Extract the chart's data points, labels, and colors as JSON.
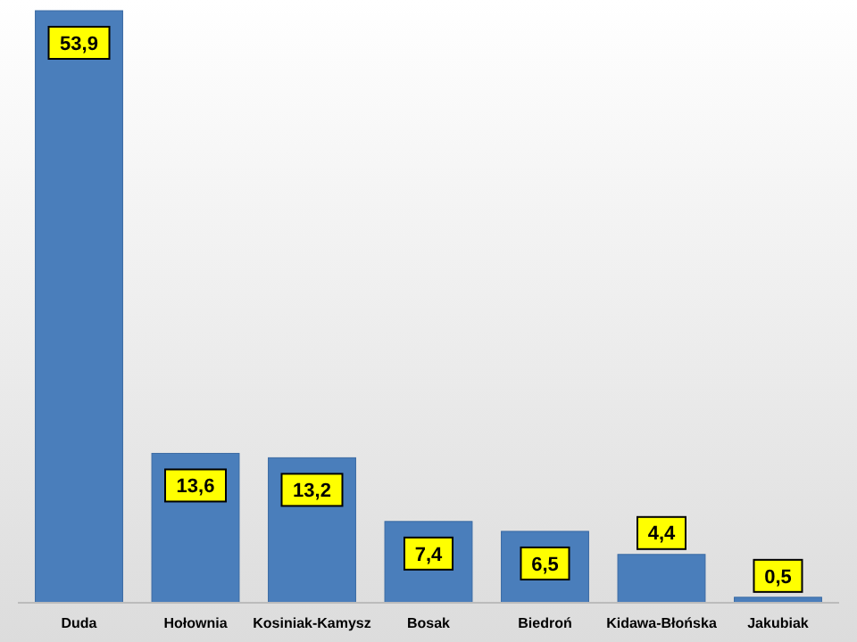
{
  "chart_data": {
    "type": "bar",
    "categories": [
      "Duda",
      "Hołownia",
      "Kosiniak-Kamysz",
      "Bosak",
      "Biedroń",
      "Kidawa-Błońska",
      "Jakubiak"
    ],
    "values": [
      53.9,
      13.6,
      13.2,
      7.4,
      6.5,
      4.4,
      0.5
    ],
    "value_labels": [
      "53,9",
      "13,6",
      "13,2",
      "7,4",
      "6,5",
      "4,4",
      "0,5"
    ],
    "color": "#4a7ebb"
  }
}
